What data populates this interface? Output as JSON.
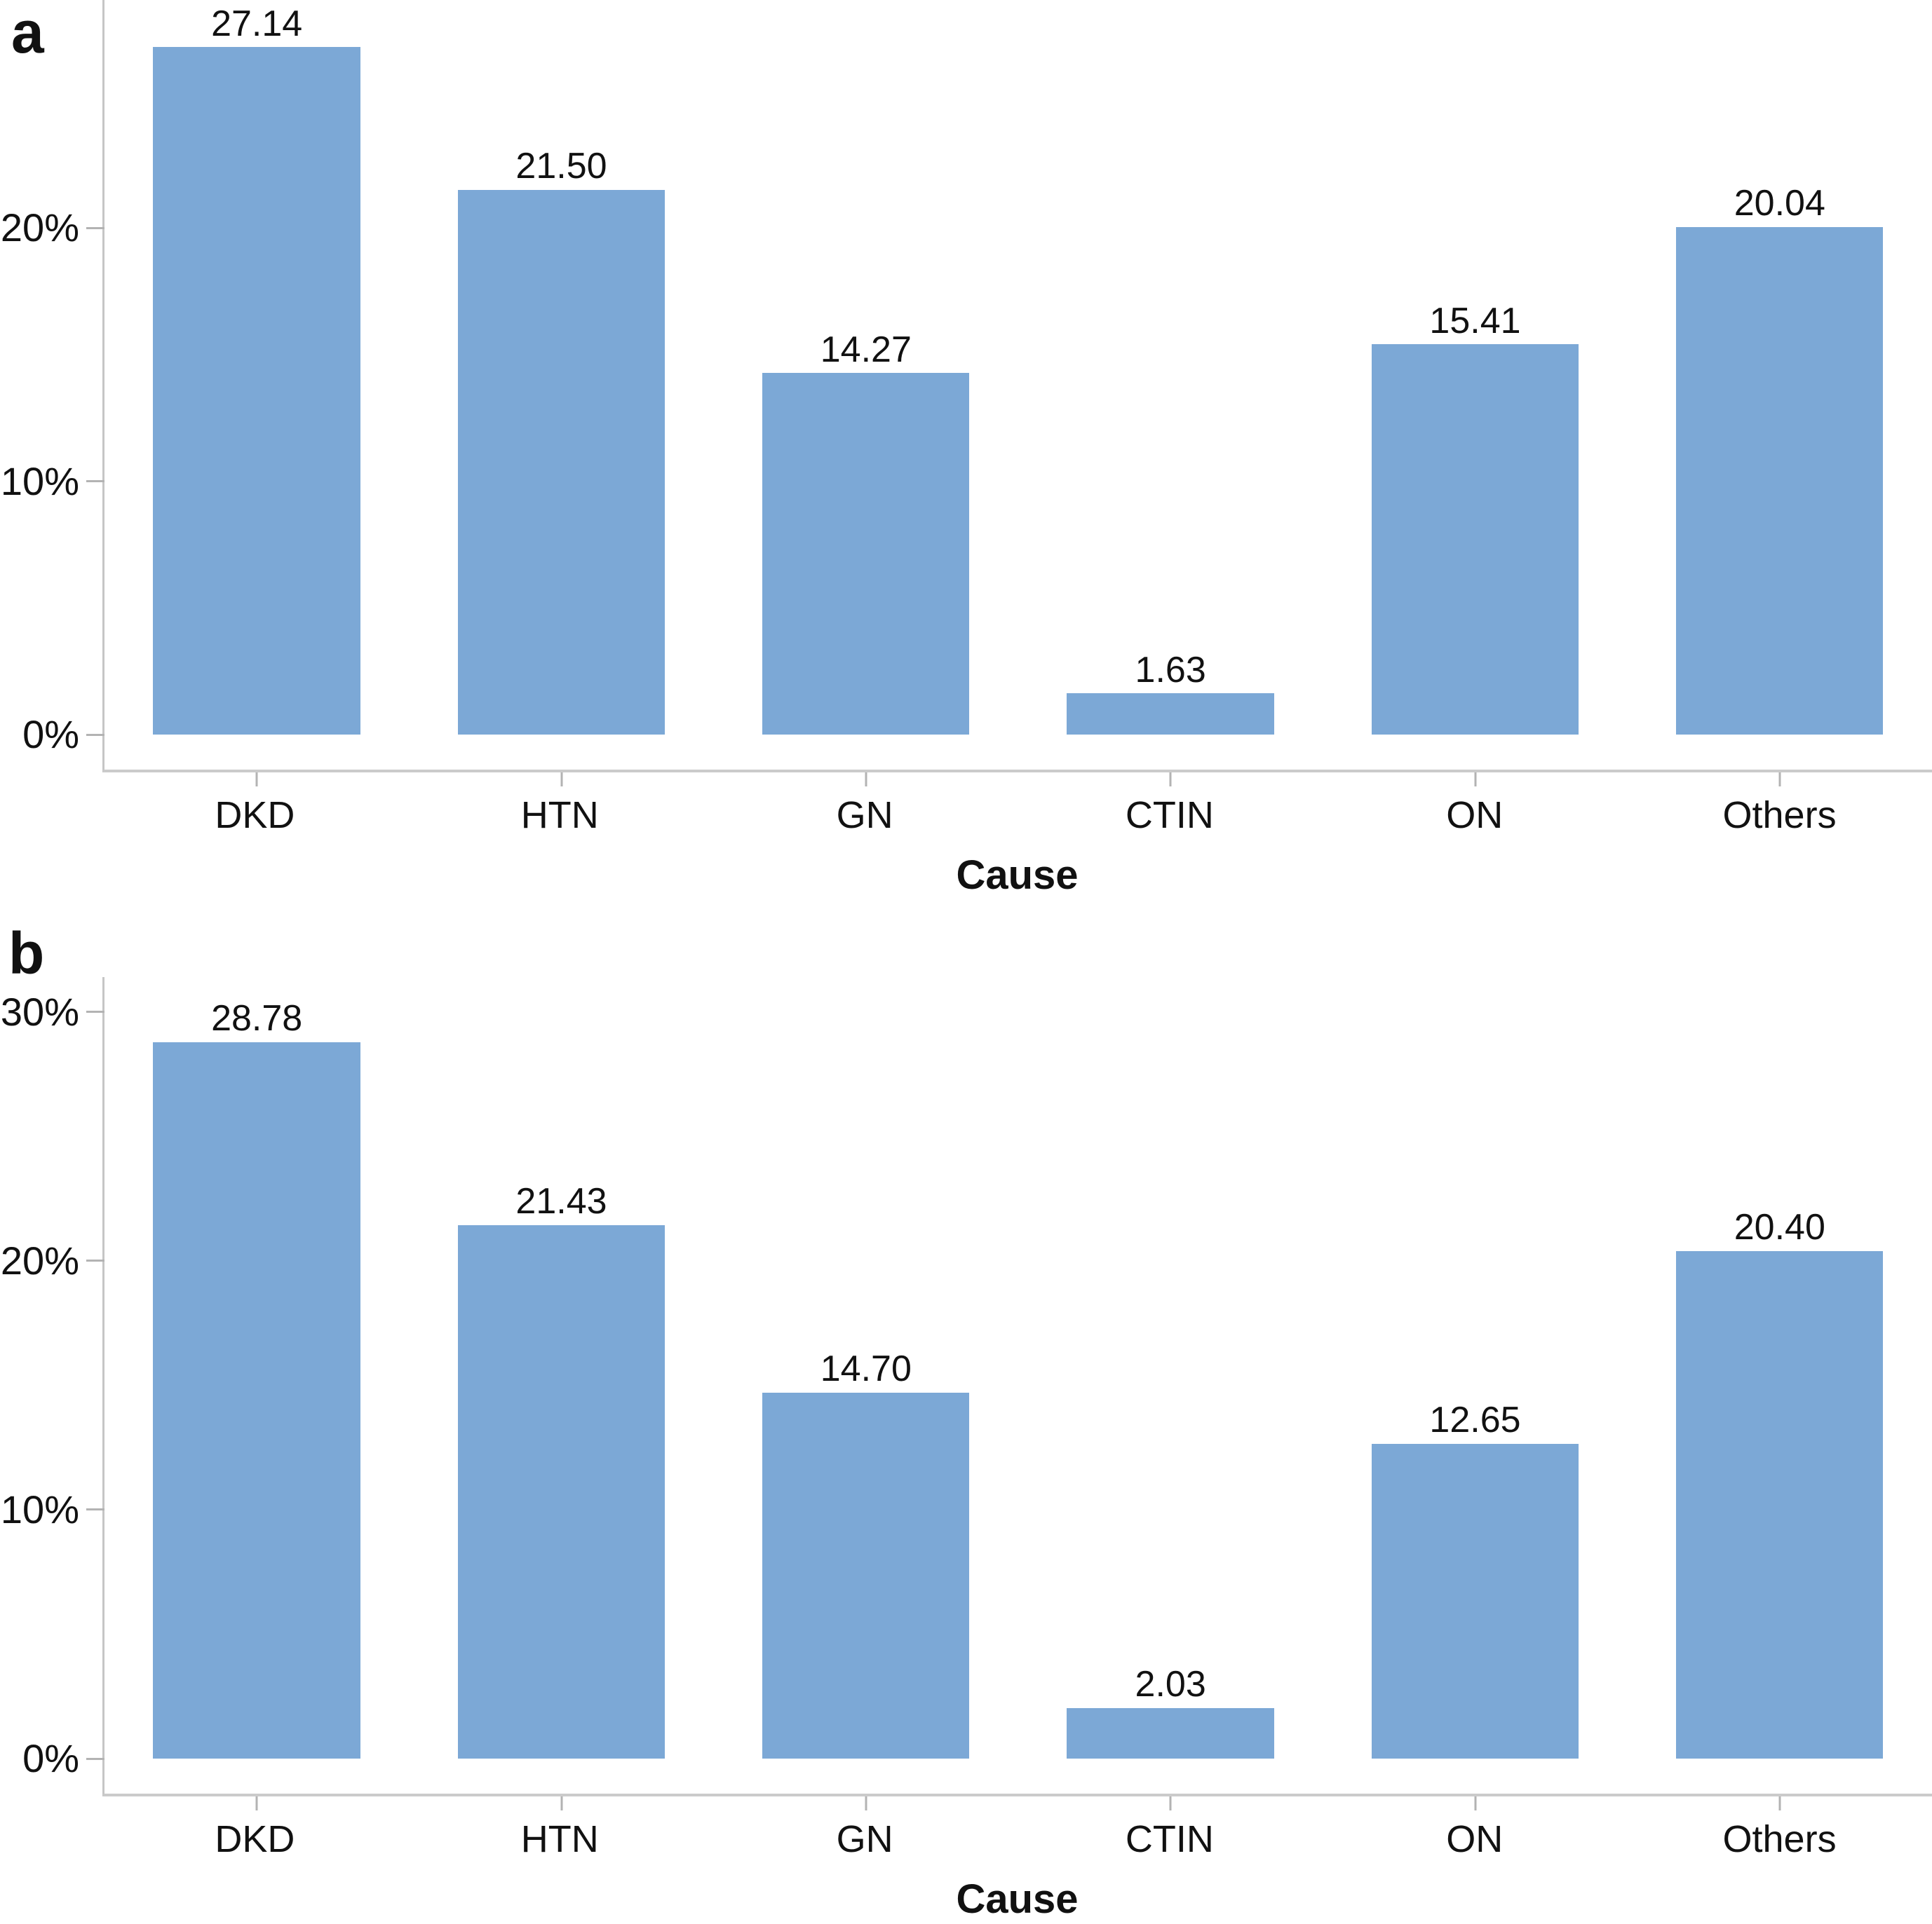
{
  "chart_data": [
    {
      "type": "bar",
      "panel": "a",
      "title": "",
      "categories": [
        "DKD",
        "HTN",
        "GN",
        "CTIN",
        "ON",
        "Others"
      ],
      "values": [
        27.14,
        21.5,
        14.27,
        1.63,
        15.41,
        20.04
      ],
      "data_labels": [
        "27.14",
        "21.50",
        "14.27",
        "1.63",
        "15.41",
        "20.04"
      ],
      "xlabel": "Cause",
      "ylabel": "",
      "ytick_labels": [
        "0%",
        "10%",
        "20%"
      ],
      "ytick_values": [
        0,
        10,
        20
      ],
      "ylim": [
        0,
        29
      ],
      "grid": false,
      "legend": false,
      "bar_color": "#7CA8D6"
    },
    {
      "type": "bar",
      "panel": "b",
      "title": "",
      "categories": [
        "DKD",
        "HTN",
        "GN",
        "CTIN",
        "ON",
        "Others"
      ],
      "values": [
        28.78,
        21.43,
        14.7,
        2.03,
        12.65,
        20.4
      ],
      "data_labels": [
        "28.78",
        "21.43",
        "14.70",
        "2.03",
        "12.65",
        "20.40"
      ],
      "xlabel": "Cause",
      "ylabel": "",
      "ytick_labels": [
        "0%",
        "10%",
        "20%",
        "30%"
      ],
      "ytick_values": [
        0,
        10,
        20,
        30
      ],
      "ylim": [
        0,
        31.4
      ],
      "grid": false,
      "legend": false,
      "bar_color": "#7CA8D6"
    }
  ],
  "figure": {
    "colors": {
      "bar": "#7CA8D6",
      "axis_line": "#C6C6C6",
      "frame_line": "#CBCBCB",
      "tick_mark": "#B3B3B3",
      "text": "#111111",
      "background": "#FFFFFF"
    },
    "panels": [
      {
        "label": "a",
        "xlabel": "Cause",
        "ymax": 29,
        "categories": [
          "DKD",
          "HTN",
          "GN",
          "CTIN",
          "ON",
          "Others"
        ],
        "values": [
          27.14,
          21.5,
          14.27,
          1.63,
          15.41,
          20.04
        ],
        "value_labels": [
          "27.14",
          "21.50",
          "14.27",
          "1.63",
          "15.41",
          "20.04"
        ],
        "yticks": [
          {
            "label": "0%",
            "value": 0
          },
          {
            "label": "10%",
            "value": 10
          },
          {
            "label": "20%",
            "value": 20
          }
        ]
      },
      {
        "label": "b",
        "xlabel": "Cause",
        "ymax": 31.4,
        "categories": [
          "DKD",
          "HTN",
          "GN",
          "CTIN",
          "ON",
          "Others"
        ],
        "values": [
          28.78,
          21.43,
          14.7,
          2.03,
          12.65,
          20.4
        ],
        "value_labels": [
          "28.78",
          "21.43",
          "14.70",
          "2.03",
          "12.65",
          "20.40"
        ],
        "yticks": [
          {
            "label": "0%",
            "value": 0
          },
          {
            "label": "10%",
            "value": 10
          },
          {
            "label": "20%",
            "value": 20
          },
          {
            "label": "30%",
            "value": 30
          }
        ]
      }
    ]
  }
}
